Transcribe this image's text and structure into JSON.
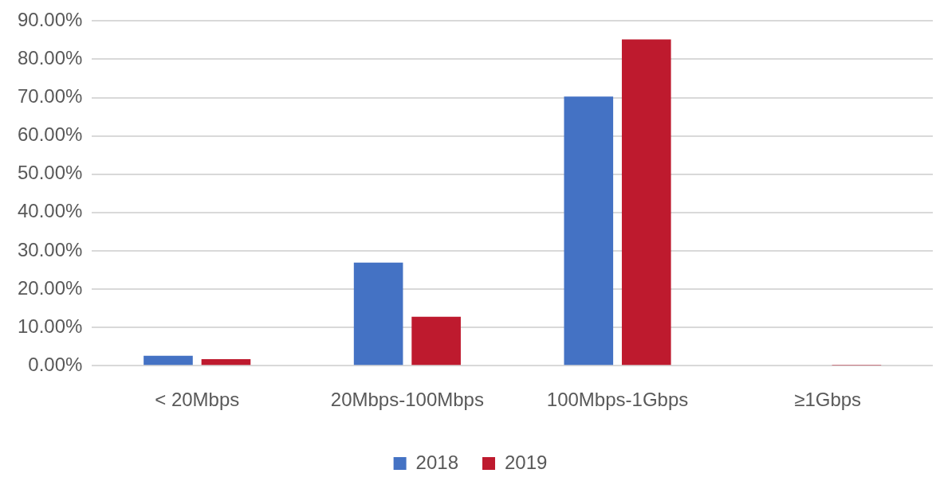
{
  "chart_data": {
    "type": "bar",
    "categories": [
      "< 20Mbps",
      "20Mbps-100Mbps",
      "100Mbps-1Gbps",
      "≥1Gbps"
    ],
    "series": [
      {
        "name": "2018",
        "color": "#4472c4",
        "values": [
          2.6,
          26.9,
          70.3,
          0
        ]
      },
      {
        "name": "2019",
        "color": "#be1a2e",
        "values": [
          1.7,
          12.8,
          85.2,
          0.1
        ]
      }
    ],
    "ylim": [
      0,
      90
    ],
    "yticks": [
      {
        "value": 0,
        "label": "0.00%"
      },
      {
        "value": 10,
        "label": "10.00%"
      },
      {
        "value": 20,
        "label": "20.00%"
      },
      {
        "value": 30,
        "label": "30.00%"
      },
      {
        "value": 40,
        "label": "40.00%"
      },
      {
        "value": 50,
        "label": "50.00%"
      },
      {
        "value": 60,
        "label": "60.00%"
      },
      {
        "value": 70,
        "label": "70.00%"
      },
      {
        "value": 80,
        "label": "80.00%"
      },
      {
        "value": 90,
        "label": "90.00%"
      }
    ],
    "grid": "y",
    "legend": "bottom"
  }
}
